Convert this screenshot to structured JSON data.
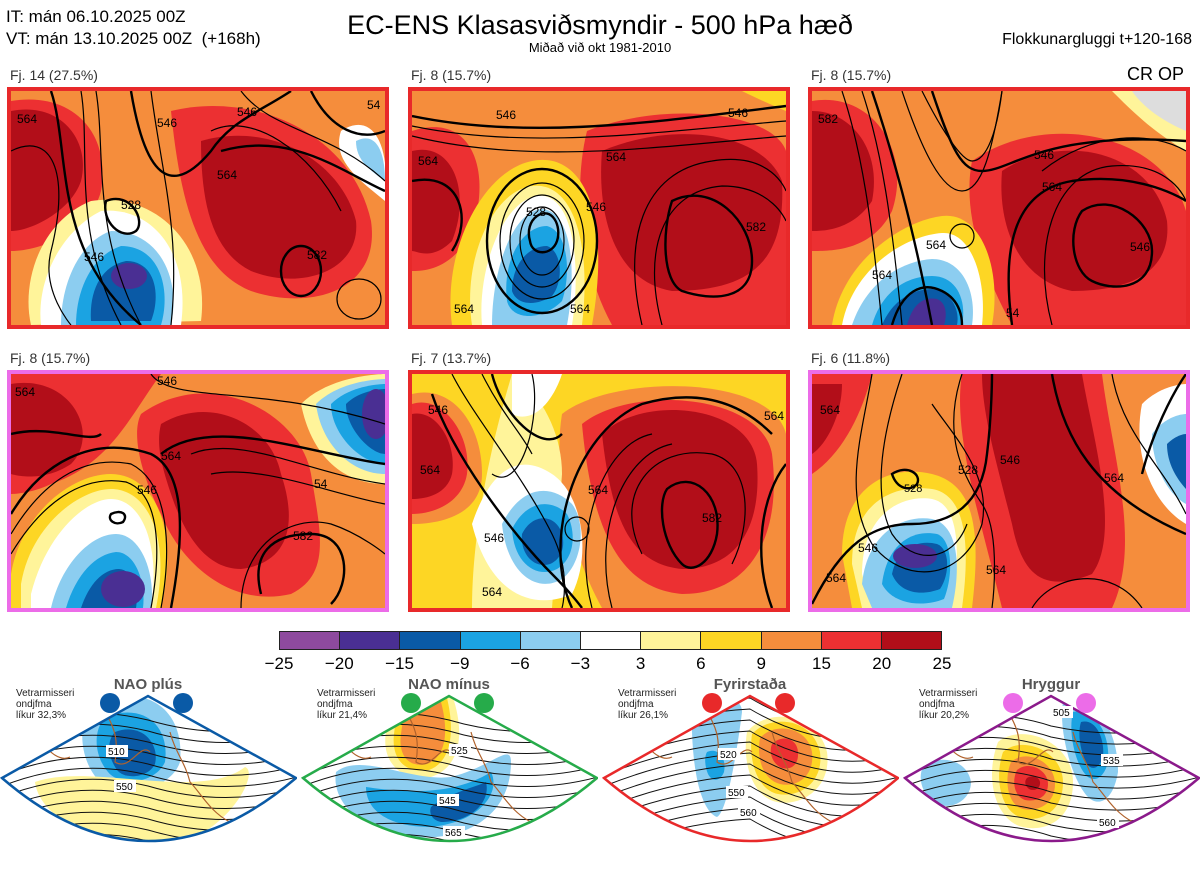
{
  "header": {
    "it_line": "IT: mán 06.10.2025 00Z",
    "vt_line": "VT: mán 13.10.2025 00Z  (+168h)",
    "title": "EC-ENS Klasasviðsmyndir - 500 hPa hæð",
    "subtitle": "Miðað við okt 1981-2010",
    "window": "Flokkunargluggi t+120-168",
    "op_label": "CR OP"
  },
  "panels": [
    {
      "label": "Fj. 14 (27.5%)",
      "regime": "Fyrirstaða",
      "frame_color": "#e8292a",
      "contours": [
        "564",
        "546",
        "546",
        "528",
        "546",
        "564",
        "582",
        "54",
        "564",
        "54"
      ]
    },
    {
      "label": "Fj. 8 (15.7%)",
      "regime": "Fyrirstaða",
      "frame_color": "#e8292a",
      "contours": [
        "546",
        "546",
        "564",
        "528",
        "546",
        "564",
        "582",
        "564",
        "564",
        "46"
      ]
    },
    {
      "label": "Fj. 8 (15.7%)",
      "regime": "Fyrirstaða",
      "frame_color": "#e8292a",
      "contours": [
        "546",
        "564",
        "582",
        "546",
        "564",
        "564",
        "54"
      ]
    },
    {
      "label": "Fj. 8 (15.7%)",
      "regime": "Hryggur",
      "frame_color": "#ec6ce8",
      "contours": [
        "564",
        "546",
        "546",
        "564",
        "582",
        "54"
      ]
    },
    {
      "label": "Fj. 7 (13.7%)",
      "regime": "Fyrirstaða",
      "frame_color": "#e8292a",
      "contours": [
        "546",
        "564",
        "564",
        "582",
        "546",
        "564",
        "564"
      ]
    },
    {
      "label": "Fj. 6 (11.8%)",
      "regime": "Hryggur",
      "frame_color": "#ec6ce8",
      "contours": [
        "564",
        "528",
        "528",
        "546",
        "564",
        "546",
        "564",
        "564"
      ]
    }
  ],
  "colorbar": {
    "colors": [
      "#8e4a9e",
      "#4a2f93",
      "#0a5aa6",
      "#1ba3e2",
      "#8ccdf0",
      "#ffffff",
      "#fff49a",
      "#fdd624",
      "#f58d3c",
      "#ec3032",
      "#b20e19"
    ],
    "ticks": [
      "−25",
      "−20",
      "−15",
      "−9",
      "−6",
      "−3",
      "3",
      "6",
      "9",
      "15",
      "20",
      "25"
    ]
  },
  "regimes": [
    {
      "title": "NAO plús",
      "note": "Vetrarmisseri\nondjfma\nlíkur 32,3%",
      "color": "#0a5aa6",
      "contour_labels": [
        "510",
        "550"
      ]
    },
    {
      "title": "NAO mínus",
      "note": "Vetrarmisseri\nondjfma\nlíkur 21,4%",
      "color": "#26ab4a",
      "contour_labels": [
        "525",
        "545",
        "565"
      ]
    },
    {
      "title": "Fyrirstaða",
      "note": "Vetrarmisseri\nondjfma\nlíkur 26,1%",
      "color": "#e8292a",
      "contour_labels": [
        "520",
        "550",
        "560"
      ]
    },
    {
      "title": "Hryggur",
      "note": "Vetrarmisseri\nondjfma\nlíkur 20,2%",
      "color": "#ec6ce8",
      "frame": "#8b1a8b",
      "contour_labels": [
        "505",
        "535",
        "560"
      ]
    }
  ]
}
